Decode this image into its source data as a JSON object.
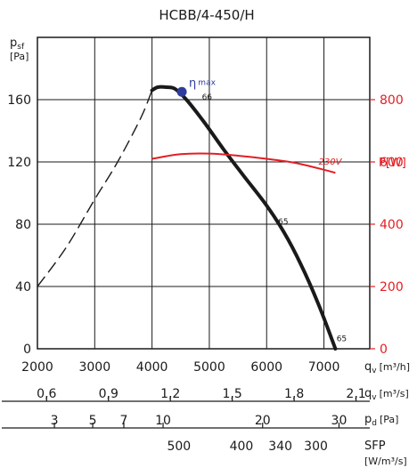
{
  "chart_data": {
    "type": "line",
    "title": "HCBB/4-450/H",
    "y_left": {
      "label_main": "p",
      "label_sub": "sf",
      "unit": "[Pa]",
      "ticks": [
        0,
        40,
        80,
        120,
        160
      ],
      "range": [
        0,
        200
      ]
    },
    "y_right": {
      "label": "P[W]",
      "ticks": [
        0,
        200,
        400,
        600,
        800
      ],
      "range": [
        0,
        1000
      ],
      "color": "#e31e24"
    },
    "x": {
      "label_main": "q",
      "label_sub": "v",
      "unit": "[m³/h]",
      "ticks": [
        2000,
        3000,
        4000,
        5000,
        6000,
        7000
      ],
      "range": [
        2000,
        7800
      ]
    },
    "x_m3s": {
      "label_main": "q",
      "label_sub": "v",
      "unit": "[m³/s]",
      "ticks": [
        "0,6",
        "0,9",
        "1,2",
        "1,5",
        "1,8",
        "2,1"
      ],
      "tick_values": [
        0.6,
        0.9,
        1.2,
        1.5,
        1.8,
        2.1
      ]
    },
    "x_pd": {
      "label_main": "p",
      "label_sub": "d",
      "unit": "[Pa]",
      "ticks": [
        "3",
        "5",
        "7",
        "10",
        "20",
        "30"
      ],
      "tick_values": [
        3,
        5,
        7,
        10,
        20,
        30
      ]
    },
    "x_sfp": {
      "label": "SFP",
      "unit": "[W/m³/s]",
      "ticks": [
        "500",
        "400",
        "340",
        "300"
      ],
      "tick_positions_m3h": [
        4470,
        5560,
        6240,
        6860
      ]
    },
    "series": [
      {
        "role": "pressure-operating",
        "color": "#1a1a1a",
        "x": [
          4000,
          4100,
          4250,
          4400,
          4600,
          4900,
          5250,
          5600,
          6000,
          6300,
          6600,
          6900,
          7200
        ],
        "y": [
          166,
          168,
          168,
          167,
          160,
          146,
          128,
          111,
          92,
          75,
          54,
          29,
          0
        ]
      },
      {
        "role": "pressure-unstable",
        "color": "#1a1a1a",
        "dashed": true,
        "x": [
          2000,
          2500,
          3000,
          3400,
          3800,
          4000
        ],
        "y": [
          40,
          65,
          96,
          120,
          148,
          166
        ]
      },
      {
        "role": "power",
        "color": "#e31e24",
        "axis": "right",
        "label": "230V",
        "x": [
          4000,
          4500,
          5000,
          5500,
          6000,
          6500,
          7000,
          7200
        ],
        "y": [
          610,
          625,
          627,
          620,
          610,
          597,
          575,
          565
        ]
      }
    ],
    "annotations": [
      {
        "text": "η",
        "subtext": "max",
        "x": 4520,
        "y": 165,
        "marker": true,
        "color": "#2e3c9e"
      },
      {
        "text": "66",
        "x": 4870,
        "y": 160
      },
      {
        "text": "65",
        "x": 6200,
        "y": 80
      },
      {
        "text": "65",
        "x": 7220,
        "y": 5
      }
    ],
    "grid": true
  }
}
